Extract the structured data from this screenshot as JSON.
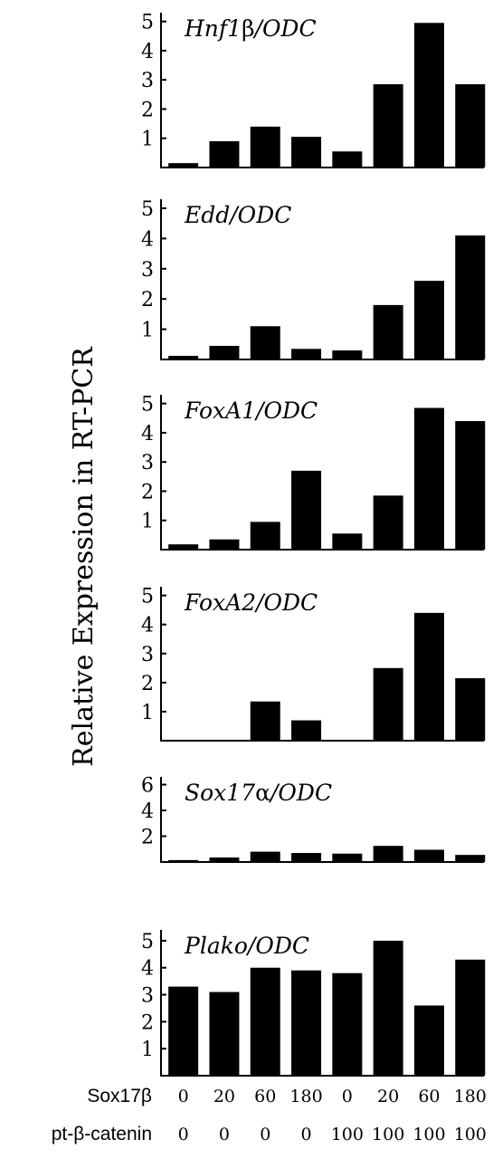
{
  "chart_data": [
    {
      "type": "bar",
      "title_parts": [
        {
          "text": "Hnf1",
          "italic": true
        },
        {
          "text": "β",
          "italic": false
        },
        {
          "text": "/ODC",
          "italic": true
        }
      ],
      "yticks": [
        1,
        2,
        3,
        4,
        5
      ],
      "ylim": [
        0,
        5.3
      ],
      "values": [
        0.15,
        0.9,
        1.4,
        1.05,
        0.55,
        2.85,
        4.95,
        2.85
      ]
    },
    {
      "type": "bar",
      "title_parts": [
        {
          "text": "Edd/ODC",
          "italic": true
        }
      ],
      "yticks": [
        1,
        2,
        3,
        4,
        5
      ],
      "ylim": [
        0,
        5.3
      ],
      "values": [
        0.12,
        0.45,
        1.1,
        0.35,
        0.3,
        1.8,
        2.6,
        4.1
      ]
    },
    {
      "type": "bar",
      "title_parts": [
        {
          "text": "FoxA1/ODC",
          "italic": true
        }
      ],
      "yticks": [
        1,
        2,
        3,
        4,
        5
      ],
      "ylim": [
        0,
        5.3
      ],
      "values": [
        0.18,
        0.35,
        0.95,
        2.7,
        0.55,
        1.85,
        4.85,
        4.4
      ]
    },
    {
      "type": "bar",
      "title_parts": [
        {
          "text": "FoxA2/ODC",
          "italic": true
        }
      ],
      "yticks": [
        1,
        2,
        3,
        4,
        5
      ],
      "ylim": [
        0,
        5.3
      ],
      "values": [
        0,
        0,
        1.35,
        0.7,
        0,
        2.5,
        4.4,
        2.15
      ]
    },
    {
      "type": "bar",
      "title_parts": [
        {
          "text": "Sox17",
          "italic": true
        },
        {
          "text": "α",
          "italic": false
        },
        {
          "text": "/ODC",
          "italic": true
        }
      ],
      "yticks": [
        2,
        4,
        6
      ],
      "ylim": [
        0,
        6.6
      ],
      "values": [
        0.15,
        0.35,
        0.8,
        0.7,
        0.65,
        1.25,
        0.95,
        0.55
      ]
    },
    {
      "type": "bar",
      "title_parts": [
        {
          "text": "Plako/ODC",
          "italic": true
        }
      ],
      "yticks": [
        1,
        2,
        3,
        4,
        5
      ],
      "ylim": [
        0,
        5.4
      ],
      "values": [
        3.3,
        3.1,
        4.0,
        3.9,
        3.8,
        5.0,
        2.6,
        4.3
      ]
    }
  ],
  "ylabel": "Relative Expression in RT-PCR",
  "conditions": {
    "rows": [
      {
        "label": "Sox17β",
        "values": [
          "0",
          "20",
          "60",
          "180",
          "0",
          "20",
          "60",
          "180"
        ]
      },
      {
        "label": "pt-β-catenin",
        "values": [
          "0",
          "0",
          "0",
          "0",
          "100",
          "100",
          "100",
          "100"
        ]
      }
    ]
  }
}
